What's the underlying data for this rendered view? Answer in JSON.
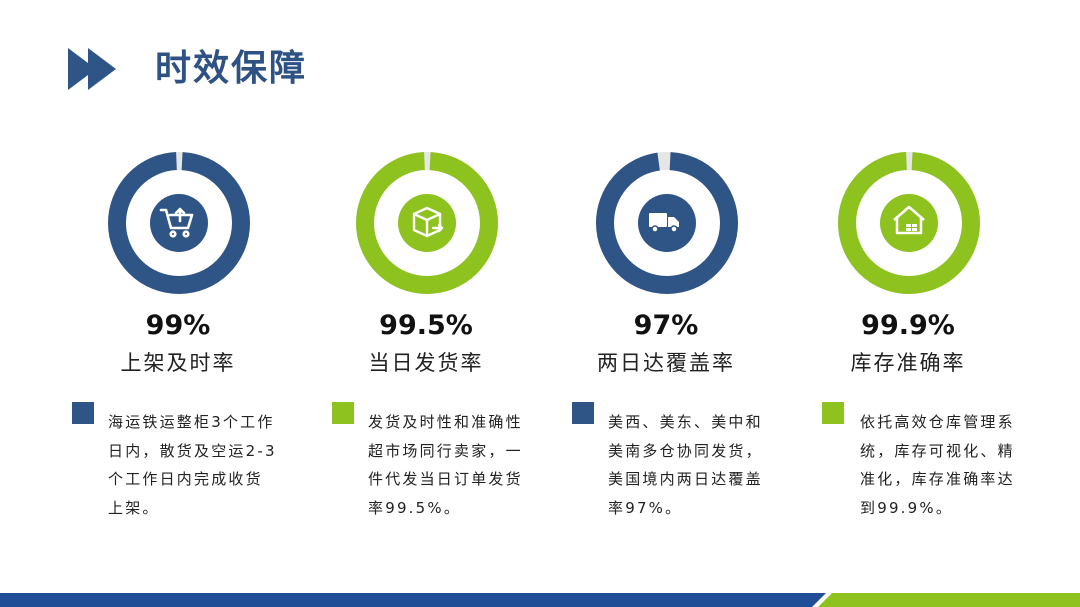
{
  "title": "时效保障",
  "colors": {
    "blue": "#2f5486",
    "green": "#8dc21f",
    "gap": "#e6e6e6"
  },
  "cards": [
    {
      "percent": "99%",
      "value": 99,
      "label": "上架及时率",
      "color": "blue",
      "icon": "shopping-cart-icon",
      "description": "海运铁运整柜3个工作日内，散货及空运2-3个工作日内完成收货上架。"
    },
    {
      "percent": "99.5%",
      "value": 99.5,
      "label": "当日发货率",
      "color": "green",
      "icon": "package-box-icon",
      "description": "发货及时性和准确性超市场同行卖家，一件代发当日订单发货率99.5%。"
    },
    {
      "percent": "97%",
      "value": 97,
      "label": "两日达覆盖率",
      "color": "blue",
      "icon": "delivery-truck-icon",
      "description": "美西、美东、美中和美南多仓协同发货，美国境内两日达覆盖率97%。"
    },
    {
      "percent": "99.9%",
      "value": 99.9,
      "label": "库存准确率",
      "color": "green",
      "icon": "warehouse-icon",
      "description": "依托高效仓库管理系统，库存可视化、精准化，库存准确率达到99.9%。"
    }
  ]
}
